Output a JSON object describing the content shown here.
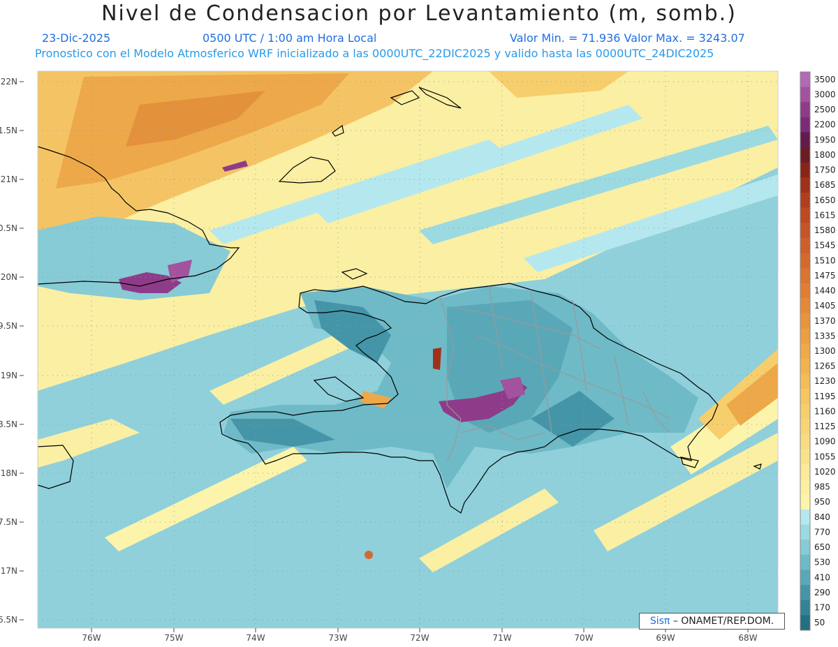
{
  "header": {
    "title": "Nivel de Condensacion por Levantamiento (m, somb.)",
    "date": "23-Dic-2025",
    "time": "0500 UTC / 1:00 am Hora Local",
    "minmax": "Valor Min. = 71.936   Valor Max. = 3243.07",
    "subtitle": "Pronostico con el Modelo Atmosferico WRF inicializado a las 0000UTC_22DIC2025 y valido hasta las  0000UTC_24DIC2025"
  },
  "axes": {
    "lat_labels": [
      "22N",
      "1.5N",
      "21N",
      "0.5N",
      "20N",
      "9.5N",
      "19N",
      "8.5N",
      "18N",
      "7.5N",
      "17N",
      "6.5N"
    ],
    "lon_labels": [
      "76W",
      "75W",
      "74W",
      "73W",
      "72W",
      "71W",
      "70W",
      "69W",
      "68W"
    ]
  },
  "colorbar": {
    "labels": [
      "3500",
      "3000",
      "2500",
      "2200",
      "1950",
      "1800",
      "1750",
      "1685",
      "1650",
      "1615",
      "1580",
      "1545",
      "1510",
      "1475",
      "1440",
      "1405",
      "1370",
      "1335",
      "1300",
      "1265",
      "1230",
      "1195",
      "1160",
      "1125",
      "1090",
      "1055",
      "1020",
      "985",
      "950",
      "840",
      "770",
      "650",
      "530",
      "410",
      "290",
      "170",
      "50"
    ],
    "colors": [
      "#b269b6",
      "#a3529f",
      "#8e3c8a",
      "#7c2c77",
      "#621b4f",
      "#6b1d26",
      "#8a2417",
      "#a0301a",
      "#b13d1f",
      "#bd4a22",
      "#c55428",
      "#cd5f2b",
      "#d4692e",
      "#da7431",
      "#e07e34",
      "#e48938",
      "#e8943d",
      "#eb9e42",
      "#eea948",
      "#f1b34f",
      "#f3bd58",
      "#f5c661",
      "#f6ce6c",
      "#f7d577",
      "#f8dc82",
      "#f9e28e",
      "#faea99",
      "#fbefa3",
      "#fcf4ab",
      "#b4e8ee",
      "#9cdae2",
      "#86cbd5",
      "#6fbac7",
      "#59a8b8",
      "#4595a8",
      "#338296",
      "#256f84"
    ]
  },
  "credit": {
    "sis": "Sisπ",
    "org": "– ONAMET/REP.DOM."
  }
}
